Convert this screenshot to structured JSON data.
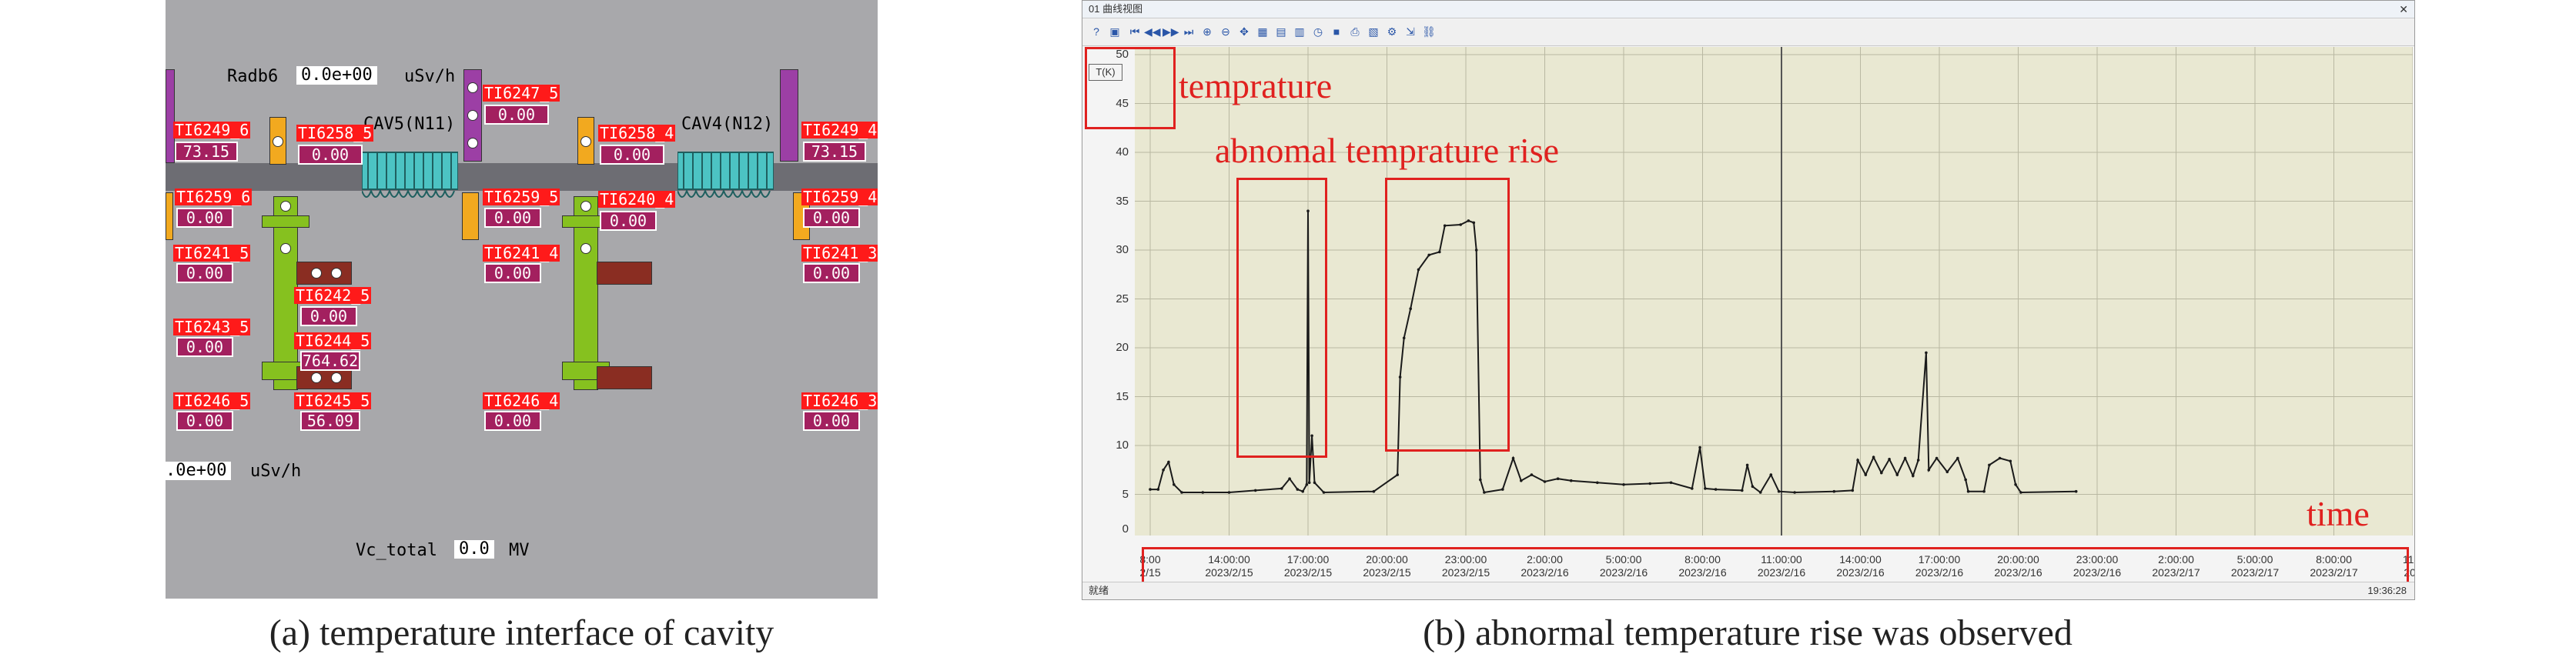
{
  "panel_a": {
    "radb6": {
      "label": "Radb6",
      "value": "0.0e+00",
      "unit": "uSv/h"
    },
    "cav5": "CAV5(N11)",
    "cav4": "CAV4(N12)",
    "tags": {
      "ti6249_6": {
        "name": "TI6249_6",
        "value": "73.15"
      },
      "ti6258_5": {
        "name": "TI6258_5",
        "value": "0.00"
      },
      "ti6247_5": {
        "name": "TI6247_5",
        "value": "0.00"
      },
      "ti6258_4": {
        "name": "TI6258_4",
        "value": "0.00"
      },
      "ti6249_4": {
        "name": "TI6249_4",
        "value": "73.15"
      },
      "ti6259_6": {
        "name": "TI6259_6",
        "value": "0.00"
      },
      "ti6259_5": {
        "name": "TI6259_5",
        "value": "0.00"
      },
      "ti6240_4": {
        "name": "TI6240_4",
        "value": "0.00"
      },
      "ti6259_4": {
        "name": "TI6259_4",
        "value": "0.00"
      },
      "ti6241_5": {
        "name": "TI6241_5",
        "value": "0.00"
      },
      "ti6241_4": {
        "name": "TI6241_4",
        "value": "0.00"
      },
      "ti6241_3": {
        "name": "TI6241_3",
        "value": "0.00"
      },
      "ti6242_5": {
        "name": "TI6242_5",
        "value": "0.00"
      },
      "ti6243_5": {
        "name": "TI6243_5",
        "value": "0.00"
      },
      "ti6244_5": {
        "name": "TI6244_5",
        "value": "764.62"
      },
      "ti6246_5": {
        "name": "TI6246_5",
        "value": "0.00"
      },
      "ti6245_5": {
        "name": "TI6245_5",
        "value": "56.09"
      },
      "ti6246_4": {
        "name": "TI6246_4",
        "value": "0.00"
      },
      "ti6246_3": {
        "name": "TI6246_3",
        "value": "0.00"
      }
    },
    "bottom_rate": {
      "value": ".0e+00",
      "unit": "uSv/h"
    },
    "vc_total": {
      "label": "Vc_total",
      "value": "0.0",
      "unit": "MV"
    }
  },
  "panel_b": {
    "window_title": "01 曲线视图",
    "status_left": "就绪",
    "status_time": "19:36:28",
    "y_axis_unit": "T(K)",
    "y_ticks": [
      "50",
      "45",
      "40",
      "35",
      "30",
      "25",
      "20",
      "15",
      "10",
      "5",
      "0"
    ],
    "x_ticks": [
      {
        "t": "8:00",
        "d": "2/15"
      },
      {
        "t": "14:00:00",
        "d": "2023/2/15"
      },
      {
        "t": "17:00:00",
        "d": "2023/2/15"
      },
      {
        "t": "20:00:00",
        "d": "2023/2/15"
      },
      {
        "t": "23:00:00",
        "d": "2023/2/15"
      },
      {
        "t": "2:00:00",
        "d": "2023/2/16"
      },
      {
        "t": "5:00:00",
        "d": "2023/2/16"
      },
      {
        "t": "8:00:00",
        "d": "2023/2/16"
      },
      {
        "t": "11:00:00",
        "d": "2023/2/16"
      },
      {
        "t": "14:00:00",
        "d": "2023/2/16"
      },
      {
        "t": "17:00:00",
        "d": "2023/2/16"
      },
      {
        "t": "20:00:00",
        "d": "2023/2/16"
      },
      {
        "t": "23:00:00",
        "d": "2023/2/16"
      },
      {
        "t": "2:00:00",
        "d": "2023/2/17"
      },
      {
        "t": "5:00:00",
        "d": "2023/2/17"
      },
      {
        "t": "8:00:00",
        "d": "2023/2/17"
      },
      {
        "t": "11:0",
        "d": "202"
      }
    ],
    "annotations": {
      "temprature": "temprature",
      "abnormal": "abnomal temprature rise",
      "time": "time"
    }
  },
  "chart_data": {
    "type": "line",
    "ylabel": "T(K)",
    "xlabel": "time",
    "ylim": [
      0,
      50
    ],
    "series": [
      {
        "points": [
          [
            11.0,
            5.5
          ],
          [
            11.3,
            5.5
          ],
          [
            11.5,
            7.5
          ],
          [
            11.7,
            8.3
          ],
          [
            11.9,
            6.0
          ],
          [
            12.2,
            5.2
          ],
          [
            13.0,
            5.2
          ],
          [
            14.0,
            5.2
          ],
          [
            15.0,
            5.4
          ],
          [
            16.0,
            5.6
          ],
          [
            16.3,
            6.6
          ],
          [
            16.6,
            5.5
          ],
          [
            16.8,
            5.3
          ],
          [
            16.95,
            6.0
          ],
          [
            17.0,
            34.0
          ],
          [
            17.05,
            6.2
          ],
          [
            17.15,
            11.0
          ],
          [
            17.25,
            6.2
          ],
          [
            17.6,
            5.2
          ],
          [
            19.5,
            5.3
          ],
          [
            20.4,
            7.0
          ],
          [
            20.5,
            17.0
          ],
          [
            20.65,
            21.0
          ],
          [
            20.9,
            24.0
          ],
          [
            21.2,
            28.0
          ],
          [
            21.6,
            29.5
          ],
          [
            22.0,
            29.8
          ],
          [
            22.2,
            32.5
          ],
          [
            22.8,
            32.6
          ],
          [
            23.1,
            33.0
          ],
          [
            23.3,
            32.8
          ],
          [
            23.4,
            30.0
          ],
          [
            23.55,
            6.5
          ],
          [
            23.7,
            5.2
          ],
          [
            24.4,
            5.5
          ],
          [
            24.8,
            8.7
          ],
          [
            25.1,
            6.4
          ],
          [
            25.5,
            7.0
          ],
          [
            26.0,
            6.3
          ],
          [
            26.5,
            6.6
          ],
          [
            27.0,
            6.4
          ],
          [
            28.0,
            6.2
          ],
          [
            29.0,
            6.0
          ],
          [
            30.0,
            6.1
          ],
          [
            30.8,
            6.2
          ],
          [
            31.6,
            5.6
          ],
          [
            31.9,
            9.8
          ],
          [
            32.1,
            5.6
          ],
          [
            32.5,
            5.5
          ],
          [
            33.5,
            5.4
          ],
          [
            33.7,
            8.0
          ],
          [
            33.9,
            5.8
          ],
          [
            34.2,
            5.2
          ],
          [
            34.6,
            7.0
          ],
          [
            34.9,
            5.3
          ],
          [
            35.5,
            5.2
          ],
          [
            37.0,
            5.3
          ],
          [
            37.7,
            5.4
          ],
          [
            37.9,
            8.5
          ],
          [
            38.2,
            7.0
          ],
          [
            38.5,
            8.8
          ],
          [
            38.8,
            7.2
          ],
          [
            39.1,
            8.6
          ],
          [
            39.4,
            7.0
          ],
          [
            39.7,
            8.7
          ],
          [
            40.0,
            6.9
          ],
          [
            40.2,
            8.5
          ],
          [
            40.5,
            19.5
          ],
          [
            40.6,
            7.5
          ],
          [
            40.9,
            8.7
          ],
          [
            41.3,
            7.3
          ],
          [
            41.7,
            8.7
          ],
          [
            42.0,
            6.5
          ],
          [
            42.1,
            5.3
          ],
          [
            42.7,
            5.3
          ],
          [
            42.9,
            8.0
          ],
          [
            43.3,
            8.7
          ],
          [
            43.7,
            8.4
          ],
          [
            43.9,
            6.0
          ],
          [
            44.1,
            5.2
          ],
          [
            46.2,
            5.3
          ]
        ]
      }
    ]
  },
  "captions": {
    "a": "(a) temperature interface of cavity",
    "b": "(b) abnormal temperature rise was observed"
  },
  "colors": {
    "tag_red": "#ff1a1a",
    "tag_value": "#a3205f",
    "cavity": "#4cc3c3",
    "annotation_red": "#e0211f",
    "plot_bg": "#e9e8d2"
  }
}
